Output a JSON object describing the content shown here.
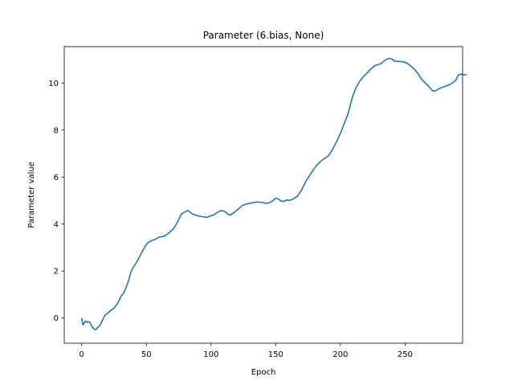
{
  "chart_data": {
    "type": "line",
    "title": "Parameter (6.bias, None)",
    "xlabel": "Epoch",
    "ylabel": "Parameter value",
    "xlim": [
      -13.5,
      294.5
    ],
    "ylim": [
      -1.07,
      11.55
    ],
    "x_ticks": [
      0,
      50,
      100,
      150,
      200,
      250
    ],
    "y_ticks": [
      0,
      2,
      4,
      6,
      8,
      10
    ],
    "grid": false,
    "series": [
      {
        "color": "#1f77b4",
        "points": [
          [
            0,
            -0.03
          ],
          [
            1,
            -0.3
          ],
          [
            2,
            -0.2
          ],
          [
            3,
            -0.13
          ],
          [
            4,
            -0.18
          ],
          [
            5,
            -0.15
          ],
          [
            6,
            -0.17
          ],
          [
            7,
            -0.25
          ],
          [
            8,
            -0.38
          ],
          [
            10,
            -0.48
          ],
          [
            11,
            -0.5
          ],
          [
            12,
            -0.42
          ],
          [
            14,
            -0.32
          ],
          [
            16,
            -0.1
          ],
          [
            18,
            0.12
          ],
          [
            20,
            0.2
          ],
          [
            22,
            0.3
          ],
          [
            25,
            0.42
          ],
          [
            28,
            0.65
          ],
          [
            30,
            0.88
          ],
          [
            33,
            1.12
          ],
          [
            36,
            1.55
          ],
          [
            38,
            1.95
          ],
          [
            40,
            2.17
          ],
          [
            43,
            2.42
          ],
          [
            46,
            2.75
          ],
          [
            49,
            3.05
          ],
          [
            51,
            3.2
          ],
          [
            54,
            3.3
          ],
          [
            57,
            3.35
          ],
          [
            60,
            3.45
          ],
          [
            63,
            3.47
          ],
          [
            65,
            3.52
          ],
          [
            68,
            3.65
          ],
          [
            71,
            3.8
          ],
          [
            74,
            4.08
          ],
          [
            77,
            4.42
          ],
          [
            80,
            4.52
          ],
          [
            82,
            4.58
          ],
          [
            84,
            4.5
          ],
          [
            86,
            4.42
          ],
          [
            89,
            4.36
          ],
          [
            92,
            4.33
          ],
          [
            95,
            4.3
          ],
          [
            97,
            4.28
          ],
          [
            99,
            4.34
          ],
          [
            102,
            4.38
          ],
          [
            105,
            4.5
          ],
          [
            108,
            4.58
          ],
          [
            111,
            4.52
          ],
          [
            113,
            4.42
          ],
          [
            115,
            4.38
          ],
          [
            118,
            4.5
          ],
          [
            121,
            4.63
          ],
          [
            124,
            4.78
          ],
          [
            127,
            4.85
          ],
          [
            130,
            4.88
          ],
          [
            133,
            4.92
          ],
          [
            136,
            4.94
          ],
          [
            139,
            4.92
          ],
          [
            142,
            4.88
          ],
          [
            145,
            4.9
          ],
          [
            148,
            5.0
          ],
          [
            150,
            5.1
          ],
          [
            152,
            5.07
          ],
          [
            154,
            4.98
          ],
          [
            156,
            4.96
          ],
          [
            158,
            5.02
          ],
          [
            161,
            5.01
          ],
          [
            164,
            5.08
          ],
          [
            167,
            5.2
          ],
          [
            170,
            5.45
          ],
          [
            173,
            5.78
          ],
          [
            176,
            6.05
          ],
          [
            179,
            6.3
          ],
          [
            182,
            6.52
          ],
          [
            185,
            6.68
          ],
          [
            188,
            6.8
          ],
          [
            191,
            6.92
          ],
          [
            194,
            7.18
          ],
          [
            197,
            7.5
          ],
          [
            200,
            7.85
          ],
          [
            203,
            8.28
          ],
          [
            206,
            8.7
          ],
          [
            209,
            9.35
          ],
          [
            212,
            9.8
          ],
          [
            215,
            10.08
          ],
          [
            218,
            10.28
          ],
          [
            221,
            10.45
          ],
          [
            224,
            10.62
          ],
          [
            227,
            10.75
          ],
          [
            230,
            10.8
          ],
          [
            232,
            10.85
          ],
          [
            234,
            10.95
          ],
          [
            236,
            11.02
          ],
          [
            238,
            11.05
          ],
          [
            240,
            11.02
          ],
          [
            242,
            10.93
          ],
          [
            245,
            10.92
          ],
          [
            248,
            10.91
          ],
          [
            251,
            10.86
          ],
          [
            254,
            10.75
          ],
          [
            257,
            10.6
          ],
          [
            260,
            10.4
          ],
          [
            263,
            10.15
          ],
          [
            266,
            9.98
          ],
          [
            269,
            9.82
          ],
          [
            271,
            9.68
          ],
          [
            273,
            9.65
          ],
          [
            275,
            9.72
          ],
          [
            277,
            9.78
          ],
          [
            279,
            9.82
          ],
          [
            281,
            9.86
          ],
          [
            283,
            9.9
          ],
          [
            285,
            9.95
          ],
          [
            287,
            10.02
          ],
          [
            289,
            10.1
          ],
          [
            290,
            10.2
          ],
          [
            291,
            10.33
          ],
          [
            293,
            10.38
          ],
          [
            295,
            10.36
          ],
          [
            297,
            10.35
          ]
        ]
      }
    ]
  }
}
